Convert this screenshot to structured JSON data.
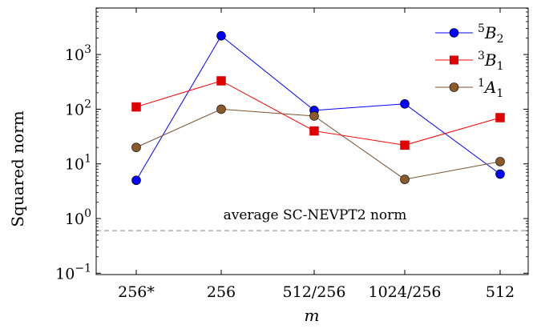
{
  "chart_data": {
    "type": "line",
    "categories": [
      "256*",
      "256",
      "512/256",
      "1024/256",
      "512"
    ],
    "xlabel": "m",
    "ylabel": "Squared norm",
    "yscale": "log",
    "ylim": [
      0.1,
      5000
    ],
    "yticks": [
      {
        "value": 0.1,
        "base": "10",
        "exp": "−1"
      },
      {
        "value": 1,
        "base": "10",
        "exp": "0"
      },
      {
        "value": 10,
        "base": "10",
        "exp": "1"
      },
      {
        "value": 100,
        "base": "10",
        "exp": "2"
      },
      {
        "value": 1000,
        "base": "10",
        "exp": "3"
      }
    ],
    "grid": false,
    "legend_position": "top-right",
    "series": [
      {
        "name_sup": "5",
        "name_main": "B",
        "name_sub": "2",
        "marker": "circle",
        "color": "#0000ff",
        "marker_color": "#0000ff",
        "values": [
          5.0,
          2200,
          95,
          125,
          6.5
        ]
      },
      {
        "name_sup": "3",
        "name_main": "B",
        "name_sub": "1",
        "marker": "square",
        "color": "#ff0000",
        "marker_color": "#e00000",
        "values": [
          110,
          330,
          40,
          22,
          70
        ]
      },
      {
        "name_sup": "1",
        "name_main": "A",
        "name_sub": "1",
        "marker": "circle",
        "color": "#7a5230",
        "marker_color": "#8b5a2b",
        "values": [
          20,
          100,
          75,
          5.2,
          11
        ]
      }
    ],
    "reference_line": {
      "value": 0.6,
      "label": "average SC-NEVPT2 norm",
      "style": "dashed",
      "color": "#888888"
    }
  }
}
